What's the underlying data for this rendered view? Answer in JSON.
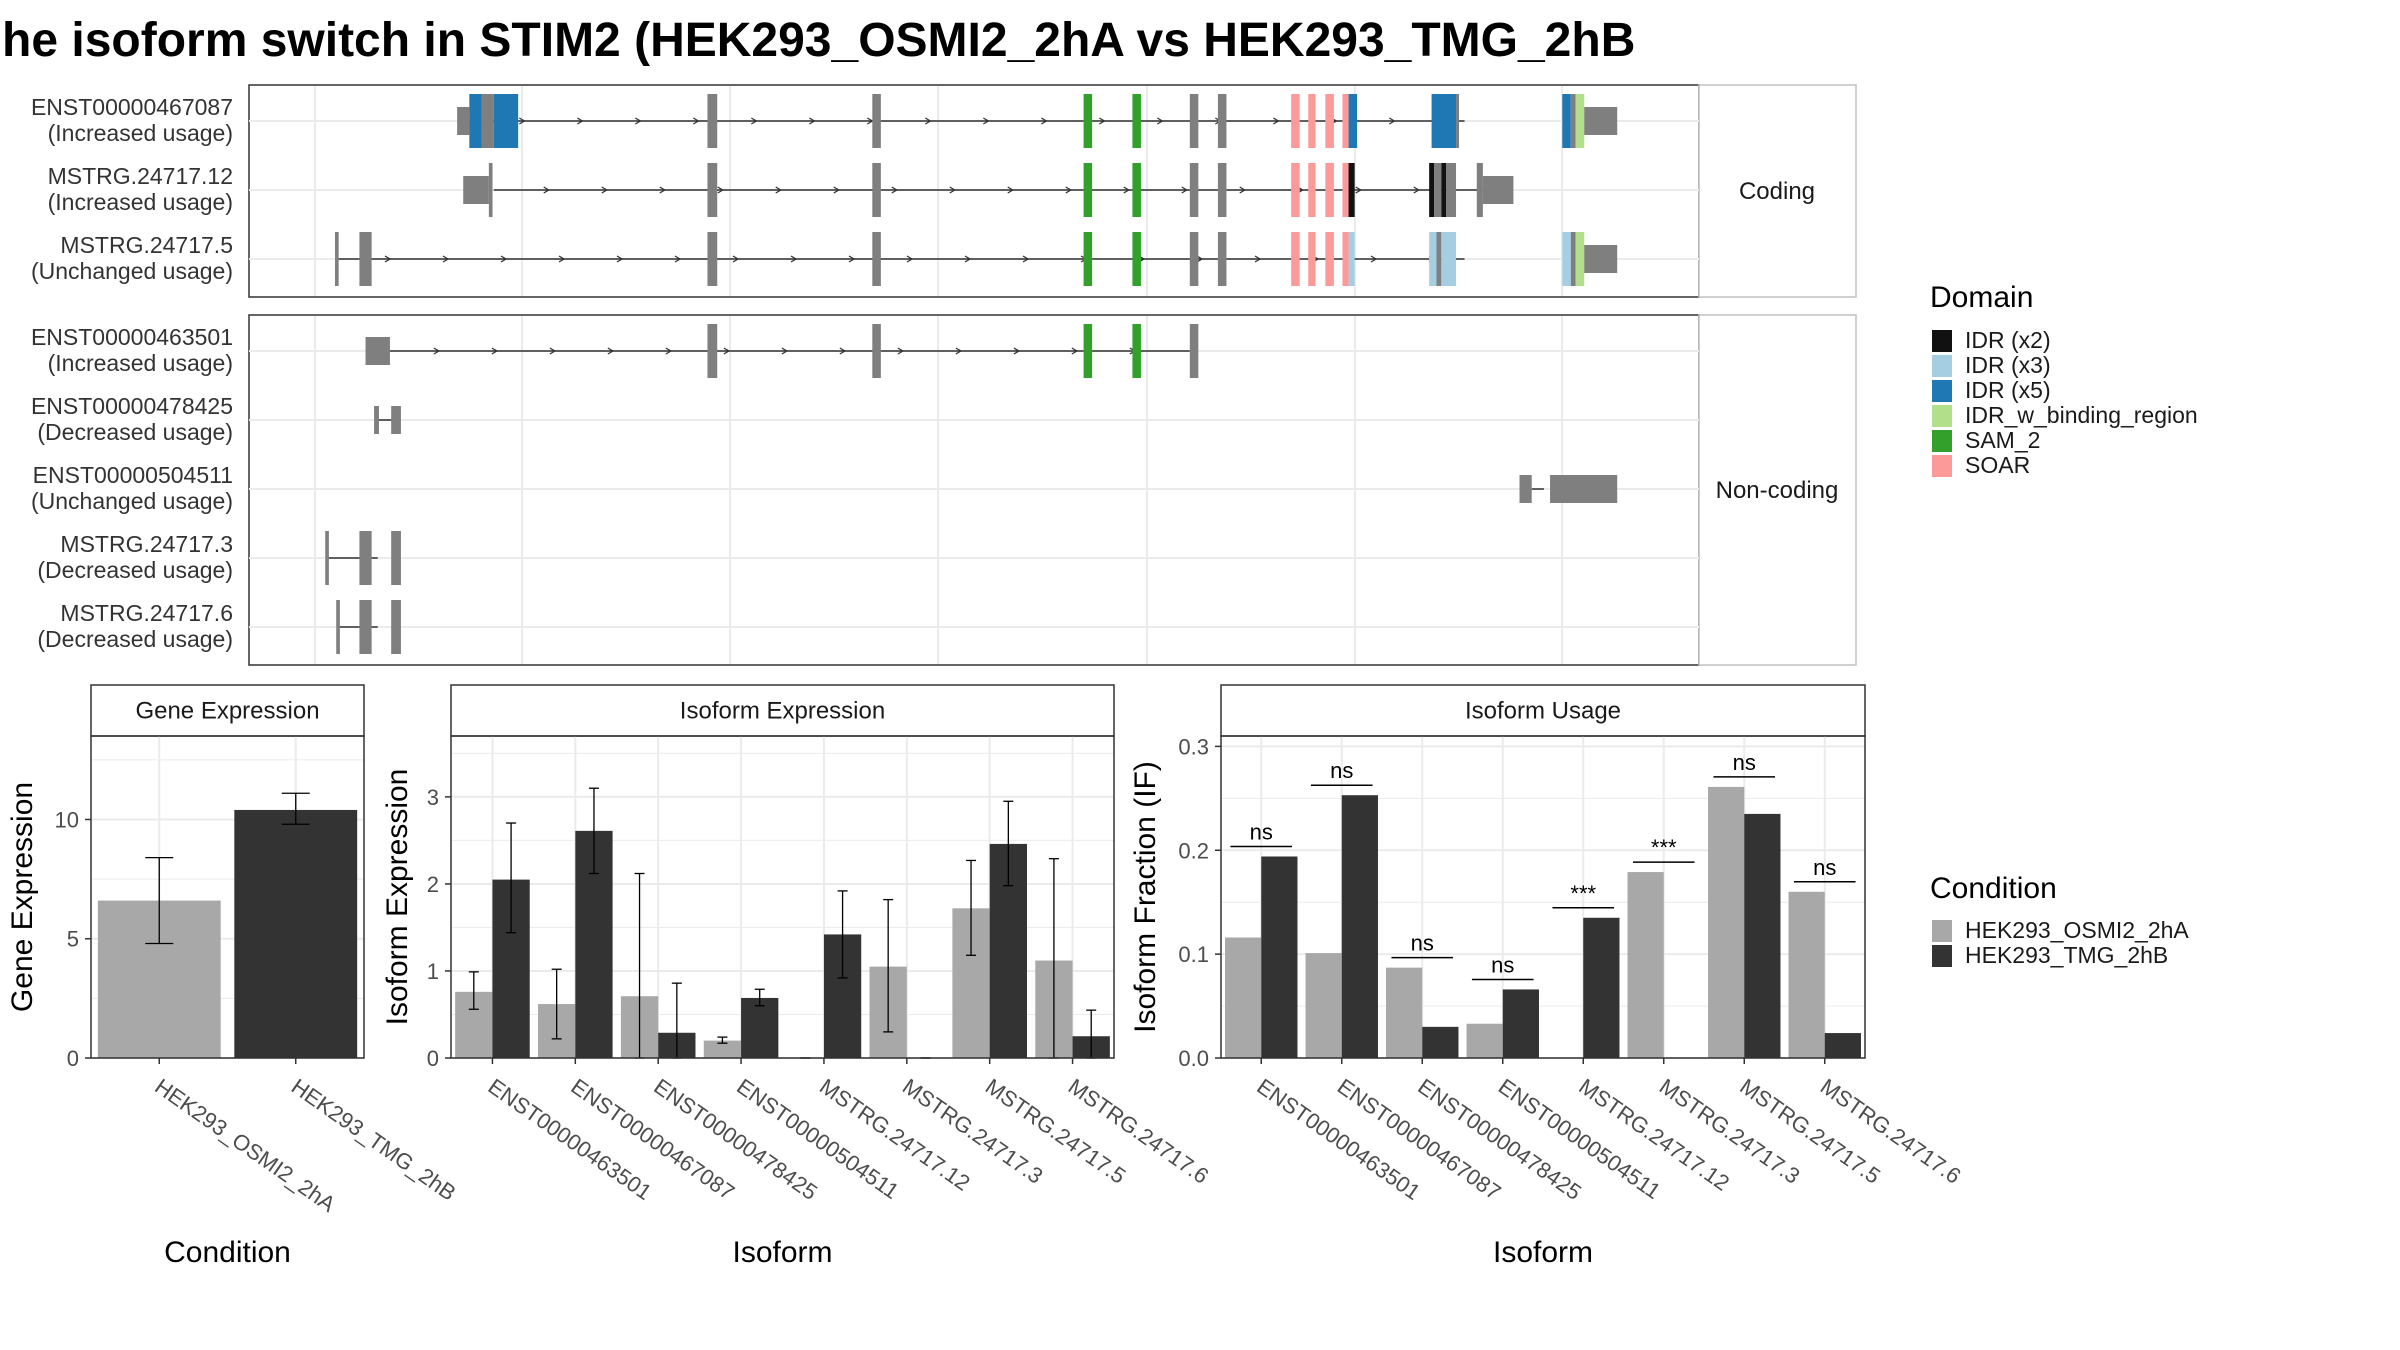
{
  "title": "he isoform switch in STIM2 (HEK293_OSMI2_2hA vs HEK293_TMG_2hB",
  "colors": {
    "exon": "#7f7f7f",
    "line": "#333333",
    "grid": "#ebebeb",
    "cond_a": "#a8a8a8",
    "cond_b": "#333333",
    "idr_x2": "#111111",
    "idr_x3": "#a6cee3",
    "idr_x5": "#1f78b4",
    "idr_w_binding_region": "#b2df8a",
    "sam_2": "#33a02c",
    "soar": "#fb9a99"
  },
  "structure": {
    "x_domain": [
      0,
      100
    ],
    "groups": [
      {
        "strip": "Coding",
        "isoforms": [
          {
            "name": "ENST00000467087",
            "usage": "(Increased usage)",
            "span": [
              16,
              97.5
            ],
            "exons": [
              {
                "s": 15,
                "e": 16,
                "c": "exon",
                "h": "s"
              },
              {
                "s": 16,
                "e": 17,
                "c": "idr_x5"
              },
              {
                "s": 17,
                "e": 18,
                "c": "exon"
              },
              {
                "s": 18,
                "e": 20,
                "c": "idr_x5"
              },
              {
                "s": 35.5,
                "e": 36.3,
                "c": "exon"
              },
              {
                "s": 49,
                "e": 49.7,
                "c": "exon"
              },
              {
                "s": 66.3,
                "e": 67,
                "c": "sam_2"
              },
              {
                "s": 70.3,
                "e": 71,
                "c": "sam_2"
              },
              {
                "s": 75,
                "e": 75.7,
                "c": "exon"
              },
              {
                "s": 77.3,
                "e": 78,
                "c": "exon"
              },
              {
                "s": 83.3,
                "e": 84,
                "c": "soar"
              },
              {
                "s": 84.7,
                "e": 85.3,
                "c": "soar"
              },
              {
                "s": 86.1,
                "e": 86.8,
                "c": "soar"
              },
              {
                "s": 87.5,
                "e": 88,
                "c": "soar"
              },
              {
                "s": 88,
                "e": 88.7,
                "c": "idr_x5"
              },
              {
                "s": 94.8,
                "e": 96.8,
                "c": "idr_x5"
              },
              {
                "s": 96.8,
                "e": 97,
                "c": "exon"
              },
              {
                "s": 105.5,
                "e": 106.2,
                "c": "idr_x5"
              },
              {
                "s": 106.2,
                "e": 106.6,
                "c": "exon"
              },
              {
                "s": 106.6,
                "e": 107.3,
                "c": "idr_w_binding_region"
              },
              {
                "s": 107.3,
                "e": 110,
                "c": "exon",
                "h": "s"
              }
            ]
          },
          {
            "name": "MSTRG.24717.12",
            "usage": "(Increased usage)",
            "span": [
              18,
              99
            ],
            "exons": [
              {
                "s": 15.5,
                "e": 17.6,
                "c": "exon",
                "h": "s"
              },
              {
                "s": 17.6,
                "e": 17.9,
                "c": "exon"
              },
              {
                "s": 35.5,
                "e": 36.3,
                "c": "exon"
              },
              {
                "s": 49,
                "e": 49.7,
                "c": "exon"
              },
              {
                "s": 66.3,
                "e": 67,
                "c": "sam_2"
              },
              {
                "s": 70.3,
                "e": 71,
                "c": "sam_2"
              },
              {
                "s": 75,
                "e": 75.7,
                "c": "exon"
              },
              {
                "s": 77.3,
                "e": 78,
                "c": "exon"
              },
              {
                "s": 83.3,
                "e": 84,
                "c": "soar"
              },
              {
                "s": 84.7,
                "e": 85.3,
                "c": "soar"
              },
              {
                "s": 86.1,
                "e": 86.8,
                "c": "soar"
              },
              {
                "s": 87.5,
                "e": 88,
                "c": "soar"
              },
              {
                "s": 88,
                "e": 88.5,
                "c": "idr_x2"
              },
              {
                "s": 94.6,
                "e": 95,
                "c": "idr_x2"
              },
              {
                "s": 95,
                "e": 95.6,
                "c": "exon"
              },
              {
                "s": 95.6,
                "e": 96,
                "c": "idr_x2"
              },
              {
                "s": 96,
                "e": 96.8,
                "c": "exon"
              },
              {
                "s": 98.5,
                "e": 99,
                "c": "exon"
              },
              {
                "s": 99,
                "e": 101.5,
                "c": "exon",
                "h": "s"
              }
            ]
          },
          {
            "name": "MSTRG.24717.5",
            "usage": "(Unchanged usage)",
            "span": [
              5,
              97.5
            ],
            "exons": [
              {
                "s": 5,
                "e": 5.3,
                "c": "exon"
              },
              {
                "s": 7,
                "e": 8,
                "c": "exon"
              },
              {
                "s": 35.5,
                "e": 36.3,
                "c": "exon"
              },
              {
                "s": 49,
                "e": 49.7,
                "c": "exon"
              },
              {
                "s": 66.3,
                "e": 67,
                "c": "sam_2"
              },
              {
                "s": 70.3,
                "e": 71,
                "c": "sam_2"
              },
              {
                "s": 75,
                "e": 75.7,
                "c": "exon"
              },
              {
                "s": 77.3,
                "e": 78,
                "c": "exon"
              },
              {
                "s": 83.3,
                "e": 84,
                "c": "soar"
              },
              {
                "s": 84.7,
                "e": 85.3,
                "c": "soar"
              },
              {
                "s": 86.1,
                "e": 86.8,
                "c": "soar"
              },
              {
                "s": 87.5,
                "e": 88,
                "c": "soar"
              },
              {
                "s": 88,
                "e": 88.5,
                "c": "idr_x3"
              },
              {
                "s": 94.6,
                "e": 95.2,
                "c": "idr_x3"
              },
              {
                "s": 95.2,
                "e": 95.6,
                "c": "exon"
              },
              {
                "s": 95.6,
                "e": 96.8,
                "c": "idr_x3"
              },
              {
                "s": 105.5,
                "e": 106.2,
                "c": "idr_x3"
              },
              {
                "s": 106.2,
                "e": 106.6,
                "c": "exon"
              },
              {
                "s": 106.6,
                "e": 107.3,
                "c": "idr_w_binding_region"
              },
              {
                "s": 107.3,
                "e": 110,
                "c": "exon",
                "h": "s"
              }
            ]
          }
        ]
      },
      {
        "strip": "Non-coding",
        "isoforms": [
          {
            "name": "ENST00000463501",
            "usage": "(Increased usage)",
            "span": [
              9,
              75
            ],
            "exons": [
              {
                "s": 7.5,
                "e": 9.5,
                "c": "exon",
                "h": "s"
              },
              {
                "s": 35.5,
                "e": 36.3,
                "c": "exon"
              },
              {
                "s": 49,
                "e": 49.7,
                "c": "exon"
              },
              {
                "s": 66.3,
                "e": 67,
                "c": "sam_2"
              },
              {
                "s": 70.3,
                "e": 71,
                "c": "sam_2"
              },
              {
                "s": 75,
                "e": 75.7,
                "c": "exon"
              }
            ]
          },
          {
            "name": "ENST00000478425",
            "usage": "(Decreased usage)",
            "span": [
              8.5,
              10
            ],
            "exons": [
              {
                "s": 8.2,
                "e": 8.6,
                "c": "exon",
                "h": "s"
              },
              {
                "s": 9.6,
                "e": 10.4,
                "c": "exon",
                "h": "s"
              }
            ]
          },
          {
            "name": "ENST00000504511",
            "usage": "(Unchanged usage)",
            "span": [
              103,
              104
            ],
            "exons": [
              {
                "s": 102,
                "e": 103,
                "c": "exon",
                "h": "s"
              },
              {
                "s": 104.5,
                "e": 110,
                "c": "exon",
                "h": "s"
              }
            ]
          },
          {
            "name": "MSTRG.24717.3",
            "usage": "(Decreased usage)",
            "span": [
              4.3,
              8.5
            ],
            "exons": [
              {
                "s": 4.2,
                "e": 4.5,
                "c": "exon"
              },
              {
                "s": 7,
                "e": 8,
                "c": "exon"
              },
              {
                "s": 9.6,
                "e": 10.4,
                "c": "exon"
              }
            ]
          },
          {
            "name": "MSTRG.24717.6",
            "usage": "(Decreased usage)",
            "span": [
              5.2,
              8.5
            ],
            "exons": [
              {
                "s": 5.1,
                "e": 5.4,
                "c": "exon"
              },
              {
                "s": 7,
                "e": 8,
                "c": "exon"
              },
              {
                "s": 9.6,
                "e": 10.4,
                "c": "exon"
              }
            ]
          }
        ]
      }
    ]
  },
  "legend_domain": {
    "title": "Domain",
    "items": [
      {
        "label": "IDR (x2)",
        "color": "#111111"
      },
      {
        "label": "IDR (x3)",
        "color": "#a6cee3"
      },
      {
        "label": "IDR (x5)",
        "color": "#1f78b4"
      },
      {
        "label": "IDR_w_binding_region",
        "color": "#b2df8a"
      },
      {
        "label": "SAM_2",
        "color": "#33a02c"
      },
      {
        "label": "SOAR",
        "color": "#fb9a99"
      }
    ]
  },
  "legend_condition": {
    "title": "Condition",
    "items": [
      {
        "label": "HEK293_OSMI2_2hA",
        "color": "#a8a8a8"
      },
      {
        "label": "HEK293_TMG_2hB",
        "color": "#333333"
      }
    ]
  },
  "chart_data": [
    {
      "type": "bar",
      "title": "Gene Expression",
      "xlabel": "Condition",
      "ylabel": "Gene Expression",
      "ylim": [
        0,
        13.5
      ],
      "yticks": [
        0,
        5,
        10
      ],
      "categories": [
        "HEK293_OSMI2_2hA",
        "HEK293_TMG_2hB"
      ],
      "values": [
        6.6,
        10.4
      ],
      "err_low": [
        4.8,
        9.8
      ],
      "err_high": [
        8.4,
        11.1
      ],
      "fills": [
        "#a8a8a8",
        "#333333"
      ]
    },
    {
      "type": "bar",
      "title": "Isoform Expression",
      "xlabel": "Isoform",
      "ylabel": "Isoform Expression",
      "ylim": [
        0,
        3.7
      ],
      "yticks": [
        0,
        1,
        2,
        3
      ],
      "categories": [
        "ENST00000463501",
        "ENST00000467087",
        "ENST00000478425",
        "ENST00000504511",
        "MSTRG.24717.12",
        "MSTRG.24717.3",
        "MSTRG.24717.5",
        "MSTRG.24717.6"
      ],
      "series": [
        {
          "name": "HEK293_OSMI2_2hA",
          "values": [
            0.76,
            0.62,
            0.71,
            0.2,
            0.0,
            1.05,
            1.72,
            1.12
          ],
          "err_low": [
            0.56,
            0.22,
            0.0,
            0.17,
            0.0,
            0.3,
            1.18,
            0.0
          ],
          "err_high": [
            0.99,
            1.02,
            2.12,
            0.24,
            0.0,
            1.82,
            2.27,
            2.29
          ]
        },
        {
          "name": "HEK293_TMG_2hB",
          "values": [
            2.05,
            2.61,
            0.29,
            0.69,
            1.42,
            0.0,
            2.46,
            0.25
          ],
          "err_low": [
            1.44,
            2.12,
            0.0,
            0.6,
            0.92,
            0.0,
            1.98,
            0.0
          ],
          "err_high": [
            2.7,
            3.1,
            0.86,
            0.79,
            1.92,
            0.0,
            2.95,
            0.55
          ]
        }
      ]
    },
    {
      "type": "bar",
      "title": "Isoform Usage",
      "xlabel": "Isoform",
      "ylabel": "Isoform Fraction (IF)",
      "ylim": [
        0,
        0.31
      ],
      "yticks": [
        0.0,
        0.1,
        0.2,
        0.3
      ],
      "ytick_labels": [
        "0.0",
        "0.1",
        "0.2",
        "0.3"
      ],
      "categories": [
        "ENST00000463501",
        "ENST00000467087",
        "ENST00000478425",
        "ENST00000504511",
        "MSTRG.24717.12",
        "MSTRG.24717.3",
        "MSTRG.24717.5",
        "MSTRG.24717.6"
      ],
      "series": [
        {
          "name": "HEK293_OSMI2_2hA",
          "values": [
            0.116,
            0.101,
            0.087,
            0.033,
            0.0,
            0.179,
            0.261,
            0.16
          ]
        },
        {
          "name": "HEK293_TMG_2hB",
          "values": [
            0.194,
            0.253,
            0.03,
            0.066,
            0.135,
            0.0,
            0.235,
            0.024
          ]
        }
      ],
      "significance": [
        "ns",
        "ns",
        "ns",
        "ns",
        "***",
        "***",
        "ns",
        "ns"
      ]
    }
  ]
}
